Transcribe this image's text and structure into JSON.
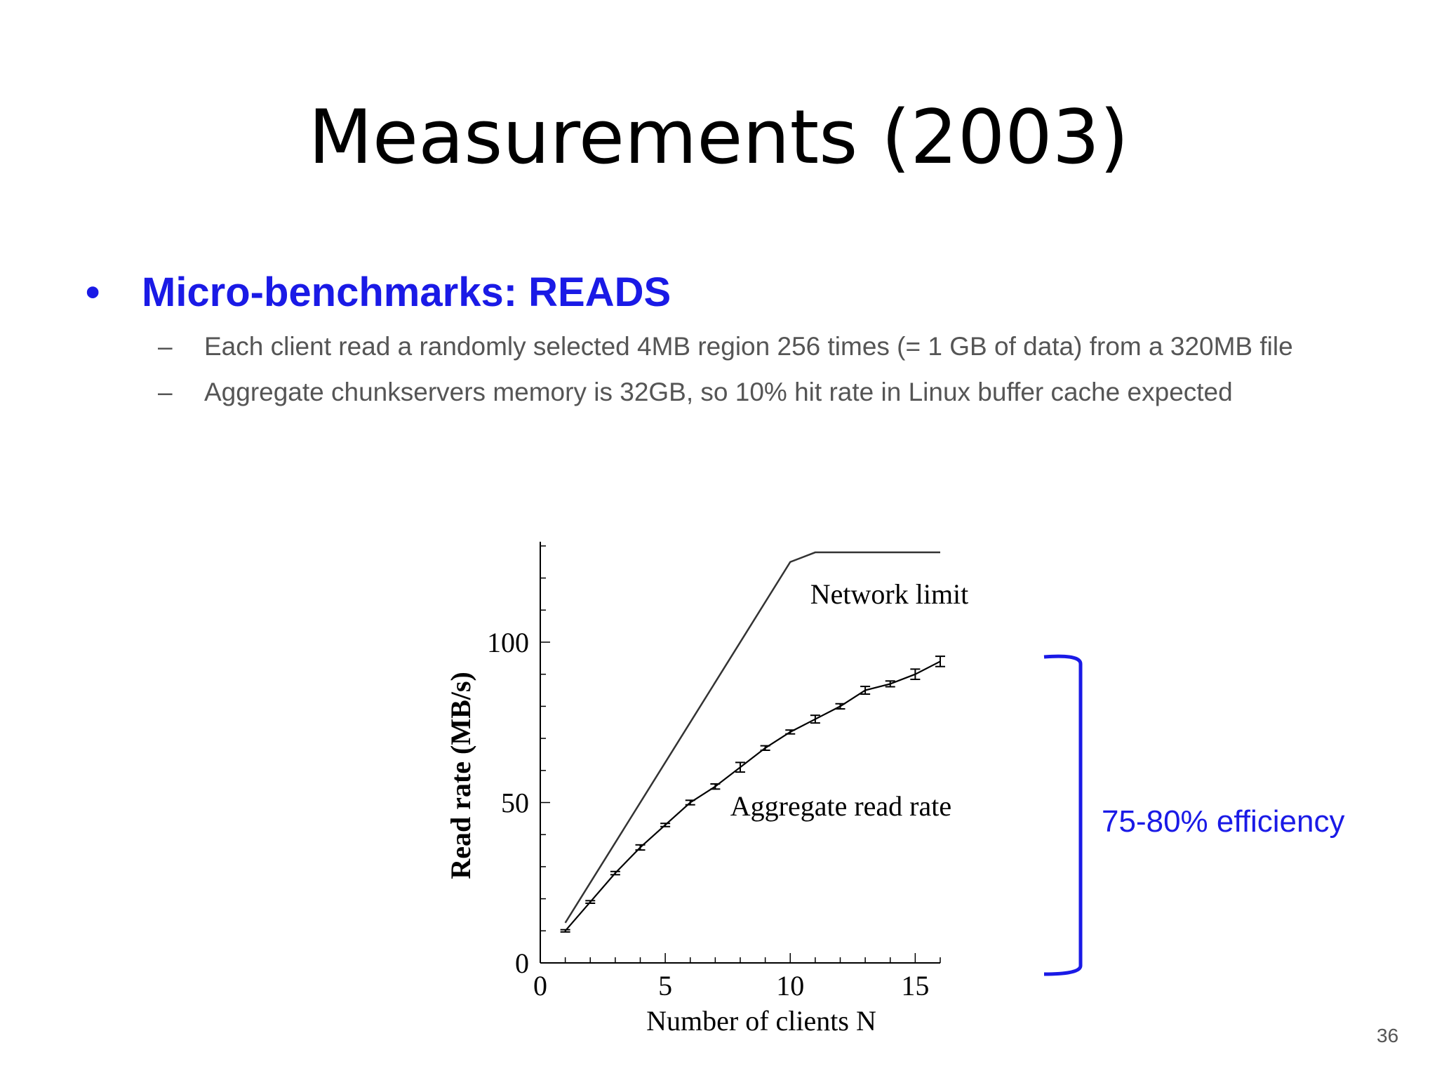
{
  "slide": {
    "title": "Measurements (2003)",
    "bullet": "Micro-benchmarks: READS",
    "bullet_symbol": "•",
    "sub_dash": "–",
    "sub_bullets": [
      "Each client read a randomly selected 4MB region 256 times (= 1 GB of data) from a 320MB file",
      "Aggregate chunkservers memory is 32GB, so 10% hit rate in Linux buffer cache expected"
    ],
    "annotation": "75-80% efficiency",
    "page_number": "36",
    "accent_color": "#1a1ae6"
  },
  "chart_data": {
    "type": "line",
    "title": "",
    "xlabel": "Number of clients N",
    "ylabel": "Read rate (MB/s)",
    "xlim": [
      0,
      16
    ],
    "ylim": [
      0,
      130
    ],
    "x_ticks": [
      0,
      5,
      10,
      15
    ],
    "y_ticks": [
      0,
      50,
      100
    ],
    "grid": false,
    "legend": "none",
    "series": [
      {
        "name": "Network limit",
        "x": [
          1,
          10,
          11,
          16
        ],
        "y": [
          12.5,
          125,
          128,
          128
        ],
        "color": "#333333"
      },
      {
        "name": "Aggregate read rate",
        "x": [
          1,
          2,
          3,
          4,
          5,
          6,
          7,
          8,
          9,
          10,
          11,
          12,
          13,
          14,
          15,
          16
        ],
        "y": [
          10,
          19,
          28,
          36,
          43,
          50,
          55,
          61,
          67,
          72,
          76,
          80,
          85,
          87,
          90,
          94
        ],
        "error": [
          0.3,
          0.4,
          0.5,
          0.8,
          0.5,
          0.7,
          0.8,
          1.5,
          0.7,
          0.6,
          1.2,
          0.8,
          1.2,
          0.9,
          1.6,
          1.6
        ],
        "color": "#000000"
      }
    ],
    "annotations": [
      {
        "text": "Network limit",
        "x": 10.8,
        "y": 112
      },
      {
        "text": "Aggregate read rate",
        "x": 7.6,
        "y": 46
      }
    ]
  }
}
